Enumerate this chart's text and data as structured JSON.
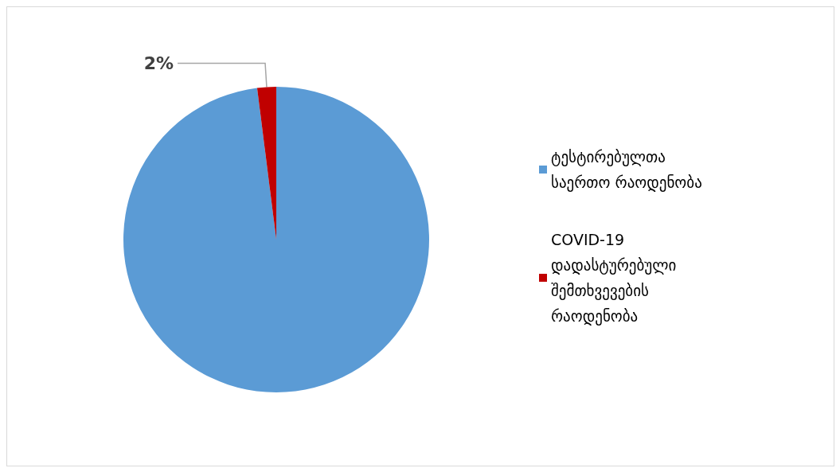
{
  "chart_data": {
    "type": "pie",
    "categories": [
      "ტესტირებულთა საერთო რაოდენობა",
      "COVID-19 დადასტურებული შემთხვევების რაოდენობა"
    ],
    "values": [
      98,
      2
    ],
    "colors": [
      "#5b9bd5",
      "#c00000"
    ],
    "value_labels": [
      null,
      "2%"
    ],
    "legend": "right"
  }
}
